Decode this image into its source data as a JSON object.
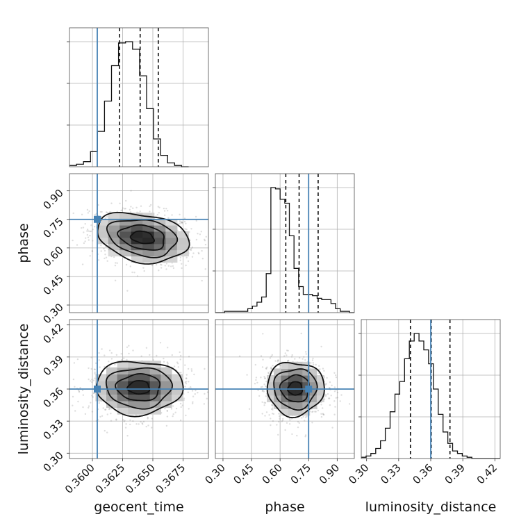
{
  "chart_data": {
    "type": "corner",
    "parameters": [
      "geocent_time",
      "phase",
      "luminosity_distance"
    ],
    "axes": {
      "geocent_time": {
        "label": "geocent_time",
        "range": [
          0.3581,
          0.3696
        ],
        "ticks": [
          0.36,
          0.3625,
          0.365,
          0.3675
        ],
        "tick_labels": [
          "0.3600",
          "0.3625",
          "0.3650",
          "0.3675"
        ],
        "truth": 0.3604,
        "quantiles": [
          0.36225,
          0.36395,
          0.36545
        ],
        "hist_edges_start": 0.3581,
        "hist_bin_width": 0.00058,
        "hist_counts": [
          1,
          2,
          4,
          12,
          28,
          52,
          80,
          98,
          99,
          93,
          72,
          46,
          22,
          9,
          3,
          1,
          0
        ]
      },
      "phase": {
        "label": "phase",
        "range": [
          0.26,
          0.99
        ],
        "ticks": [
          0.3,
          0.45,
          0.6,
          0.75,
          0.9
        ],
        "tick_labels": [
          "0.30",
          "0.45",
          "0.60",
          "0.75",
          "0.90"
        ],
        "truth": 0.75,
        "quantiles": [
          0.63,
          0.7,
          0.8
        ],
        "hist_edges_start": 0.26,
        "hist_bin_width": 0.0243,
        "hist_counts": [
          0,
          0,
          1,
          1,
          1,
          1,
          1,
          3,
          5,
          8,
          12,
          30,
          96,
          95,
          87,
          84,
          59,
          34,
          20,
          14,
          14,
          13,
          11,
          10,
          10,
          7,
          3,
          1,
          1,
          0
        ]
      },
      "luminosity_distance": {
        "label": "luminosity_distance",
        "range": [
          0.295,
          0.425
        ],
        "ticks": [
          0.3,
          0.33,
          0.36,
          0.39,
          0.42
        ],
        "tick_labels": [
          "0.30",
          "0.33",
          "0.36",
          "0.39",
          "0.42"
        ],
        "truth": 0.36,
        "quantiles": [
          0.341,
          0.3605,
          0.378
        ],
        "hist_edges_start": 0.295,
        "hist_bin_width": 0.0045,
        "hist_counts": [
          1,
          2,
          4,
          8,
          14,
          24,
          37,
          51,
          61,
          79,
          93,
          99,
          93,
          86,
          75,
          55,
          35,
          21,
          12,
          6,
          4,
          2,
          1,
          0,
          0,
          0,
          0,
          0,
          0
        ]
      }
    },
    "pairs": [
      {
        "x": "geocent_time",
        "y": "phase",
        "mean_x": 0.36415,
        "mean_y": 0.655,
        "sd_x": 0.0019,
        "sd_y": 0.065,
        "rho": -0.25
      },
      {
        "x": "geocent_time",
        "y": "luminosity_distance",
        "mean_x": 0.36385,
        "mean_y": 0.3615,
        "sd_x": 0.0018,
        "sd_y": 0.0125,
        "rho": 0.0
      },
      {
        "x": "phase",
        "y": "luminosity_distance",
        "mean_x": 0.68,
        "mean_y": 0.3605,
        "sd_x": 0.075,
        "sd_y": 0.0125,
        "rho": 0.0
      }
    ],
    "contour_levels": [
      0.5,
      1.0,
      1.5,
      2.0
    ],
    "colors": {
      "truth": "#4682b4",
      "line": "#111111",
      "grid": "#b0b0b0",
      "samples": "#888888"
    }
  }
}
